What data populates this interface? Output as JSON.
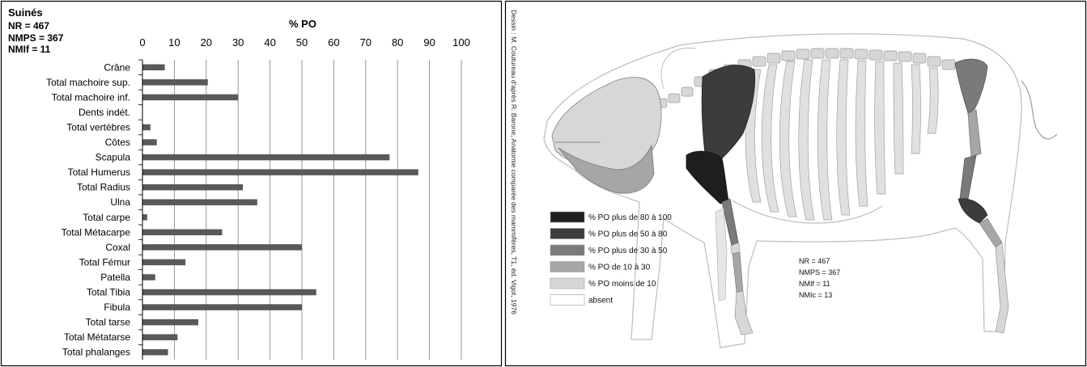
{
  "chart_data": {
    "type": "bar",
    "orientation": "horizontal",
    "title": "% PO",
    "stats_block": [
      "Suinés",
      "NR = 467",
      "NMPS = 367",
      "NMIf = 11"
    ],
    "xlim": [
      0,
      100
    ],
    "x_ticks": [
      "0",
      "10",
      "20",
      "30",
      "40",
      "50",
      "60",
      "70",
      "80",
      "90",
      "100"
    ],
    "grid": "vertical",
    "categories": [
      "Crâne",
      "Total machoire sup.",
      "Total machoire inf.",
      "Dents indét.",
      "Total vertèbres",
      "Côtes",
      "Scapula",
      "Total Humerus",
      "Total Radius",
      "Ulna",
      "Total carpe",
      "Total Métacarpe",
      "Coxal",
      "Total Fémur",
      "Patella",
      "Total Tibia",
      "Fibula",
      "Total tarse",
      "Total Métatarse",
      "Total phalanges"
    ],
    "values": [
      7,
      20.5,
      30,
      0,
      2.5,
      4.5,
      77.5,
      86.5,
      31.5,
      36,
      1.5,
      25,
      50,
      13.5,
      4,
      54.5,
      50,
      17.5,
      11,
      8
    ],
    "bar_color": "#595959"
  },
  "diagram": {
    "credit": "Dessin : M. Coutureau d'après R. Barone, Anatomie comparée des mammifères, T1, éd. Vigot, 1976",
    "legend": [
      {
        "label": "% PO plus de 80 à 100",
        "color": "#1e1e1e"
      },
      {
        "label": "% PO  plus de 50 à 80",
        "color": "#3c3c3c"
      },
      {
        "label": "% PO plus de 30 à 50",
        "color": "#7a7a7a"
      },
      {
        "label": "% PO de 10 à 30",
        "color": "#a6a6a6"
      },
      {
        "label": "% PO moins de 10",
        "color": "#d7d7d7"
      },
      {
        "label": "absent",
        "color": "#ffffff"
      }
    ],
    "stats": [
      "NR = 467",
      "NMPS = 367",
      "NMIf = 11",
      "NMIc = 13"
    ]
  }
}
